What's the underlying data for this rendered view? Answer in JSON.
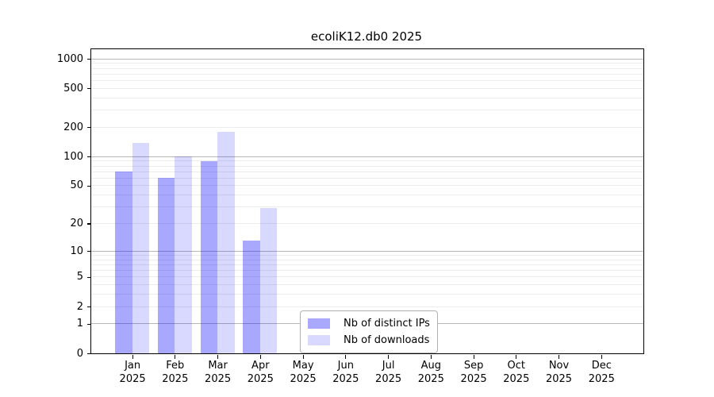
{
  "chart_data": {
    "type": "bar",
    "title": "ecoliK12.db0 2025",
    "categories": [
      "Jan",
      "Feb",
      "Mar",
      "Apr",
      "May",
      "Jun",
      "Jul",
      "Aug",
      "Sep",
      "Oct",
      "Nov",
      "Dec"
    ],
    "category_year": "2025",
    "series": [
      {
        "name": "Nb of distinct IPs",
        "color": "#0000ff57",
        "values": [
          70,
          60,
          90,
          13,
          0,
          0,
          0,
          0,
          0,
          0,
          0,
          0
        ]
      },
      {
        "name": "Nb of downloads",
        "color": "#0000ff26",
        "values": [
          137,
          100,
          178,
          29,
          0,
          0,
          0,
          0,
          0,
          0,
          0,
          0
        ]
      }
    ],
    "yticks": [
      0,
      1,
      2,
      5,
      10,
      20,
      50,
      100,
      200,
      500,
      1000
    ],
    "yscale": "log10(1+v)",
    "ylim": [
      0,
      1250
    ],
    "xlabel": "",
    "ylabel": "",
    "grid": true,
    "legend_position": "lower-center",
    "colors": {
      "major_grid": "#b8b8b8",
      "minor_grid": "#ececec",
      "spine": "#000000",
      "background": "#ffffff"
    }
  }
}
